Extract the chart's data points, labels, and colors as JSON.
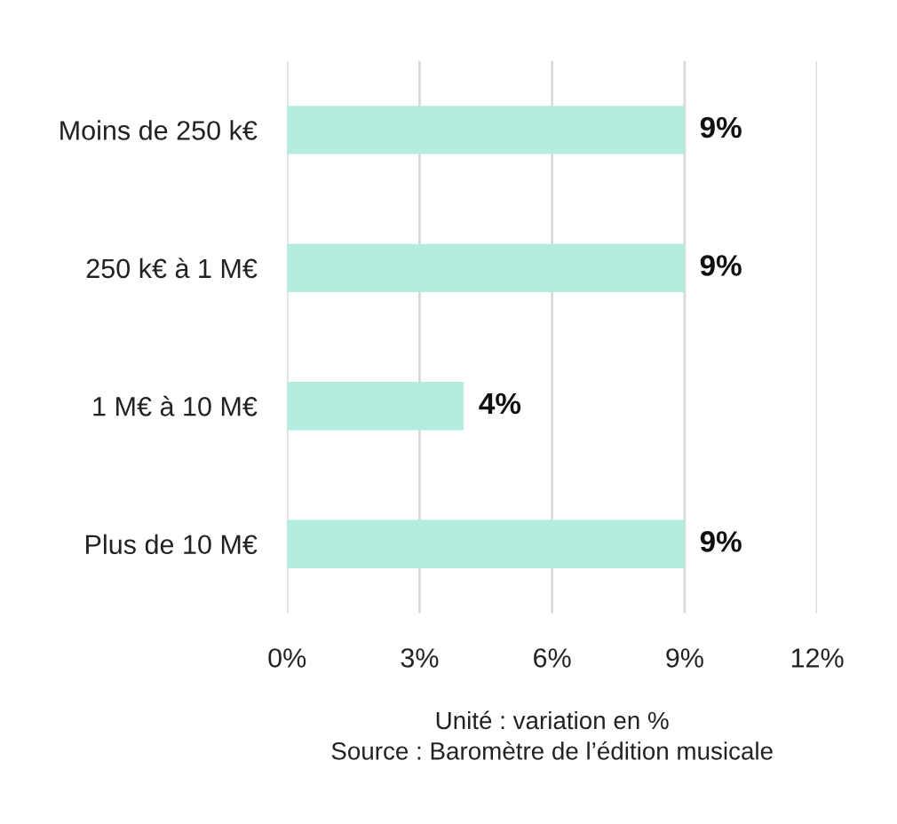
{
  "chart_data": {
    "type": "bar",
    "orientation": "horizontal",
    "categories": [
      "Moins de 250 k€",
      "250 k€ à 1 M€",
      "1 M€ à 10 M€",
      "Plus de 10 M€"
    ],
    "values": [
      9,
      9,
      4,
      9
    ],
    "color": "#b4ede0",
    "value_labels": [
      "9%",
      "9%",
      "4%",
      "9%"
    ],
    "xlim": [
      0,
      12
    ],
    "xticks": [
      {
        "value": 0,
        "label": "0%"
      },
      {
        "value": 3,
        "label": "3%"
      },
      {
        "value": 6,
        "label": "6%"
      },
      {
        "value": 9,
        "label": "9%"
      },
      {
        "value": 12,
        "label": "12%"
      }
    ],
    "grid": "x",
    "annotations": [
      "Unité : variation en %",
      "Source : Baromètre de l’édition musicale"
    ]
  }
}
